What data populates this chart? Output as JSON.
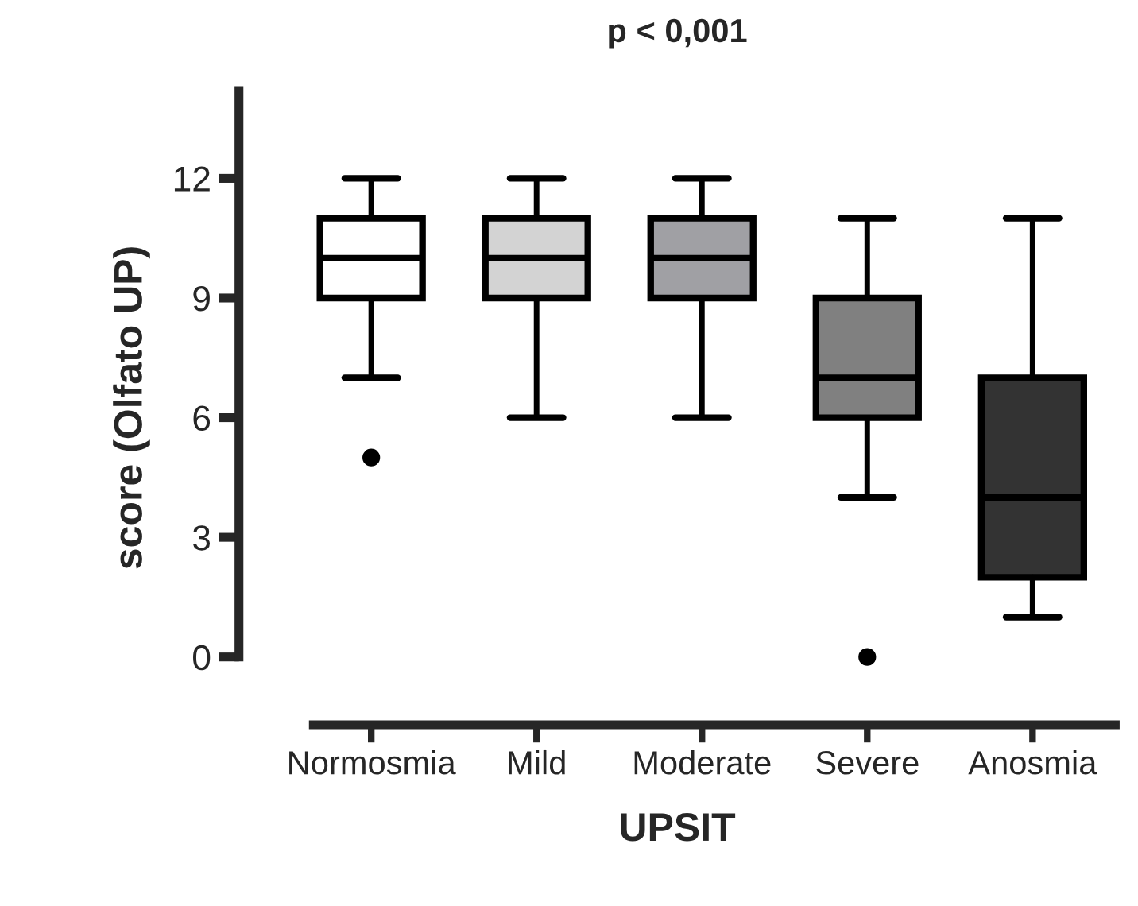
{
  "chart_data": {
    "type": "box",
    "title": "p < 0,001",
    "xlabel": "UPSIT",
    "ylabel": "score (Olfato UP)",
    "categories": [
      "Normosmia",
      "Mild",
      "Moderate",
      "Severe",
      "Anosmia"
    ],
    "colors": [
      "#ffffff",
      "#d3d3d3",
      "#a0a0a4",
      "#808080",
      "#333333"
    ],
    "boxes": [
      {
        "low": 7,
        "q1": 9,
        "median": 10,
        "q3": 11,
        "high": 12,
        "outliers": [
          5
        ]
      },
      {
        "low": 6,
        "q1": 9,
        "median": 10,
        "q3": 11,
        "high": 12
      },
      {
        "low": 6,
        "q1": 9,
        "median": 10,
        "q3": 11,
        "high": 12
      },
      {
        "low": 4,
        "q1": 6,
        "median": 7,
        "q3": 9,
        "high": 11,
        "outliers": [
          0
        ]
      },
      {
        "low": 1,
        "q1": 2,
        "median": 4,
        "q3": 7,
        "high": 11
      }
    ],
    "ylim": [
      -1.7,
      14.2
    ],
    "yticks": [
      0,
      3,
      6,
      9,
      12
    ],
    "grid": false,
    "legend": false
  }
}
